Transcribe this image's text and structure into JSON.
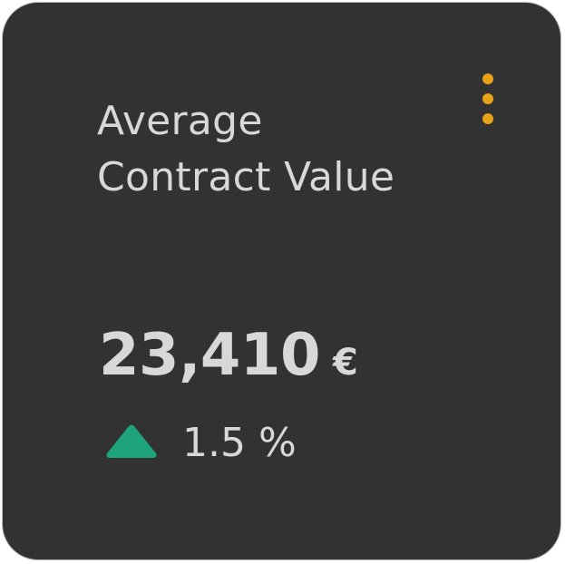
{
  "colors": {
    "card_background": "#323232",
    "accent": "#e8a317",
    "trend_up": "#1fa37a",
    "text": "#d8d8d8"
  },
  "card": {
    "title_line1": "Average",
    "title_line2": "Contract Value",
    "value": "23,410",
    "currency": "€",
    "change": "1.5 %",
    "trend_icon": "triangle-up-icon",
    "menu_icon": "kebab-menu-icon"
  }
}
